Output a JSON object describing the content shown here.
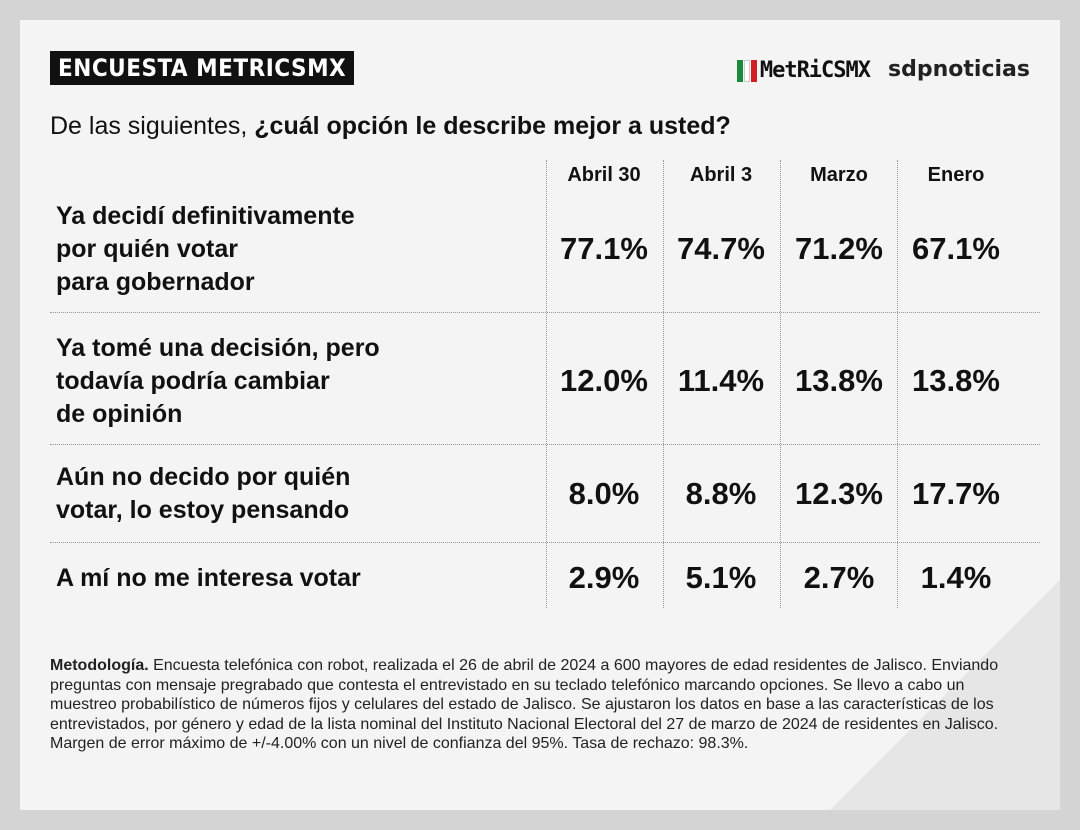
{
  "header": {
    "title": "ENCUESTA METRICSMX",
    "logo_metricsmx": "MetRiCSMX",
    "logo_sdp": "sdpnoticias"
  },
  "question": {
    "lead": "De las siguientes, ",
    "bold": "¿cuál opción le describe mejor a usted?"
  },
  "colors": {
    "card": "#f4f4f4",
    "title_bg": "#111111",
    "flag_green": "#1a8a3c",
    "flag_red": "#d21f26"
  },
  "chart_data": {
    "type": "table",
    "columns": [
      "Abril 30",
      "Abril 3",
      "Marzo",
      "Enero"
    ],
    "rows": [
      {
        "label_lines": [
          "Ya decidí definitivamente",
          "por quién votar",
          "para gobernador"
        ],
        "values": [
          "77.1%",
          "74.7%",
          "71.2%",
          "67.1%"
        ]
      },
      {
        "label_lines": [
          "Ya tomé una decisión, pero",
          "todavía podría cambiar",
          "de opinión"
        ],
        "values": [
          "12.0%",
          "11.4%",
          "13.8%",
          "13.8%"
        ]
      },
      {
        "label_lines": [
          "Aún no decido por quién",
          "votar, lo estoy pensando"
        ],
        "values": [
          "8.0%",
          "8.8%",
          "12.3%",
          "17.7%"
        ]
      },
      {
        "label_lines": [
          "A mí no me interesa votar"
        ],
        "values": [
          "2.9%",
          "5.1%",
          "2.7%",
          "1.4%"
        ]
      }
    ]
  },
  "methodology": {
    "label": "Metodología.",
    "text": " Encuesta telefónica con robot, realizada el 26 de abril de 2024 a 600 mayores de edad residentes de Jalisco. Enviando preguntas con mensaje pregrabado que contesta el entrevistado en su teclado telefónico marcando opciones. Se llevo a cabo un muestreo probabilístico de números fijos y celulares del estado de Jalisco. Se ajustaron los datos en base a las características de los entrevistados, por género y edad de la lista nominal del Instituto Nacional Electoral del 27 de marzo de 2024 de residentes en Jalisco. Margen de error máximo de +/-4.00% con un nivel de confianza del 95%. Tasa de rechazo: 98.3%."
  }
}
